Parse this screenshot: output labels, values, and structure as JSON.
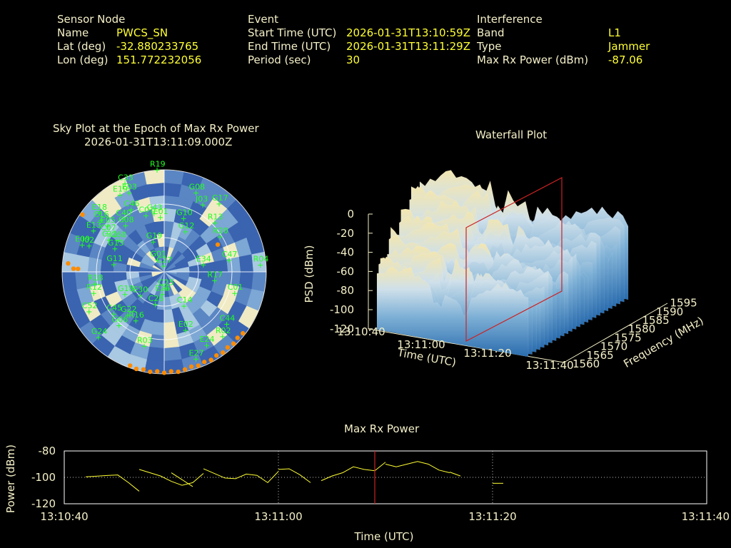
{
  "header": {
    "sensor": {
      "title": "Sensor Node",
      "name_label": "Name",
      "name": "PWCS_SN",
      "lat_label": "Lat (deg)",
      "lat": "-32.880233765",
      "lon_label": "Lon (deg)",
      "lon": "151.772232056"
    },
    "event": {
      "title": "Event",
      "start_label": "Start Time (UTC)",
      "start": "2026-01-31T13:10:59Z",
      "end_label": "End Time (UTC)",
      "end": "2026-01-31T13:11:29Z",
      "period_label": "Period (sec)",
      "period": "30"
    },
    "interference": {
      "title": "Interference",
      "band_label": "Band",
      "band": "L1",
      "type_label": "Type",
      "type": "Jammer",
      "power_label": "Max Rx Power (dBm)",
      "power": "-87.06"
    }
  },
  "sky_plot": {
    "title": "Sky Plot at the Epoch of Max Rx Power",
    "epoch": "2026-01-31T13:11:09.000Z",
    "colors": {
      "cell_dark": "#3a64b0",
      "cell_mid": "#a9c8e2",
      "cell_light": "#f0ebc4",
      "sat_label": "#22ff22",
      "jammer_marker": "#ff8c00"
    },
    "satellites": [
      {
        "id": "C33",
        "az": -24,
        "el": 5
      },
      {
        "id": "R19",
        "az": -4,
        "el": 0
      },
      {
        "id": "E19",
        "az": -30,
        "el": 12
      },
      {
        "id": "E03",
        "az": -24,
        "el": 14
      },
      {
        "id": "G08",
        "az": 22,
        "el": 15
      },
      {
        "id": "E18",
        "az": -48,
        "el": 13
      },
      {
        "id": "J03",
        "az": 30,
        "el": 22
      },
      {
        "id": "C16",
        "az": -51,
        "el": 18
      },
      {
        "id": "E05",
        "az": -51,
        "el": 26
      },
      {
        "id": "C07",
        "az": -56,
        "el": 30
      },
      {
        "id": "C40",
        "az": -38,
        "el": 31
      },
      {
        "id": "E13",
        "az": -60,
        "el": 18
      },
      {
        "id": "C46",
        "az": -28,
        "el": 28
      },
      {
        "id": "C43",
        "az": -10,
        "el": 38
      },
      {
        "id": "C01",
        "az": -18,
        "el": 38
      },
      {
        "id": "G17",
        "az": 39,
        "el": 13
      },
      {
        "id": "C60",
        "az": -56,
        "el": 41
      },
      {
        "id": "C08",
        "az": -40,
        "el": 37
      },
      {
        "id": "E01",
        "az": -4,
        "el": 42
      },
      {
        "id": "G10",
        "az": 20,
        "el": 40
      },
      {
        "id": "R13",
        "az": 46,
        "el": 28
      },
      {
        "id": "I02",
        "az": -71,
        "el": 20
      },
      {
        "id": "C11",
        "az": -60,
        "el": 34
      },
      {
        "id": "G12",
        "az": 28,
        "el": 50
      },
      {
        "id": "R20",
        "az": 58,
        "el": 32
      },
      {
        "id": "G19",
        "az": -20,
        "el": 62
      },
      {
        "id": "E09",
        "az": -72,
        "el": 14
      },
      {
        "id": "G13",
        "az": -65,
        "el": 42
      },
      {
        "id": "C47",
        "az": 80,
        "el": 32
      },
      {
        "id": "G11",
        "az": -82,
        "el": 45
      },
      {
        "id": "C27",
        "az": -5,
        "el": 85
      },
      {
        "id": "G01",
        "az": -30,
        "el": 78
      },
      {
        "id": "E34",
        "az": 80,
        "el": 55
      },
      {
        "id": "R04",
        "az": 86,
        "el": 5
      },
      {
        "id": "R18",
        "az": -100,
        "el": 28
      },
      {
        "id": "R17",
        "az": 100,
        "el": 45
      },
      {
        "id": "E30",
        "az": -135,
        "el": 60
      },
      {
        "id": "R12",
        "az": -107,
        "el": 25
      },
      {
        "id": "G18",
        "az": -120,
        "el": 50
      },
      {
        "id": "E26",
        "az": -175,
        "el": 70
      },
      {
        "id": "C26",
        "az": -165,
        "el": 60
      },
      {
        "id": "G22",
        "az": -140,
        "el": 40
      },
      {
        "id": "C25",
        "az": 175,
        "el": 75
      },
      {
        "id": "C14",
        "az": 150,
        "el": 55
      },
      {
        "id": "C01b",
        "label": "C01",
        "az": 107,
        "el": 25
      },
      {
        "id": "C52",
        "az": -118,
        "el": 15
      },
      {
        "id": "C45",
        "az": -130,
        "el": 32
      },
      {
        "id": "G06",
        "az": -140,
        "el": 28
      },
      {
        "id": "R16",
        "az": -150,
        "el": 40
      },
      {
        "id": "G24",
        "az": -135,
        "el": 8
      },
      {
        "id": "C44",
        "az": 130,
        "el": 18
      },
      {
        "id": "E02",
        "az": 160,
        "el": 35
      },
      {
        "id": "R02",
        "az": 138,
        "el": 13
      },
      {
        "id": "E24",
        "az": 150,
        "el": 15
      },
      {
        "id": "R03",
        "az": -165,
        "el": 22
      },
      {
        "id": "E27",
        "az": 160,
        "el": 8
      }
    ],
    "jammer_track": [
      {
        "az": -55,
        "el": 2
      },
      {
        "az": -85,
        "el": 5
      },
      {
        "az": -88,
        "el": 10
      },
      {
        "az": -88,
        "el": 14
      },
      {
        "az": 63,
        "el": 37
      },
      {
        "az": 128,
        "el": 2
      },
      {
        "az": 132,
        "el": 3
      },
      {
        "az": 136,
        "el": 2
      },
      {
        "az": 140,
        "el": 3
      },
      {
        "az": 144,
        "el": 2
      },
      {
        "az": 148,
        "el": 3
      },
      {
        "az": 152,
        "el": 2
      },
      {
        "az": 156,
        "el": 3
      },
      {
        "az": 160,
        "el": 2
      },
      {
        "az": 164,
        "el": 3
      },
      {
        "az": 168,
        "el": 2
      },
      {
        "az": 172,
        "el": 1
      },
      {
        "az": 176,
        "el": 2
      },
      {
        "az": 180,
        "el": 1
      },
      {
        "az": -176,
        "el": 2
      },
      {
        "az": -172,
        "el": 1
      },
      {
        "az": -168,
        "el": 2
      },
      {
        "az": -164,
        "el": 1
      },
      {
        "az": -160,
        "el": 2
      }
    ]
  },
  "waterfall": {
    "title": "Waterfall Plot",
    "zlabel": "PSD (dBm)",
    "xlabel": "Time (UTC)",
    "ylabel": "Frequency (MHz)",
    "z_ticks": [
      "0",
      "-20",
      "-40",
      "-60",
      "-80",
      "-100",
      "-120"
    ],
    "time_ticks": [
      "13:10:40",
      "13:11:00",
      "13:11:20",
      "13:11:40"
    ],
    "freq_ticks": [
      "1560",
      "1565",
      "1570",
      "1575",
      "1580",
      "1585",
      "1590",
      "1595"
    ],
    "zlim": [
      -120,
      0
    ],
    "marker_time": "13:11:09",
    "colors": {
      "peak": "#f3e6b0",
      "low": "#2a6cae",
      "marker": "#cc2222"
    }
  },
  "chart_data": {
    "type": "line",
    "title": "Max Rx Power",
    "xlabel": "Time (UTC)",
    "ylabel": "Power (dBm)",
    "x_ticks": [
      "13:10:40",
      "13:11:00",
      "13:11:20",
      "13:11:40"
    ],
    "y_ticks": [
      "-80",
      "-100",
      "-120"
    ],
    "ylim": [
      -120,
      -80
    ],
    "xlim_seconds": [
      0,
      60
    ],
    "grid": true,
    "marker_time": "13:11:09",
    "colors": {
      "line": "#ffff33",
      "marker": "#cc2222",
      "grid": "#bbbbbb"
    },
    "series": [
      {
        "segments": [
          {
            "t": [
              2,
              4,
              5,
              6,
              7
            ],
            "v": [
              -99.6,
              -98.6,
              -98.2,
              -104,
              -110.5
            ]
          },
          {
            "t": [
              7,
              9,
              10,
              11,
              12,
              13
            ],
            "v": [
              -94,
              -99,
              -103,
              -106,
              -104,
              -97
            ]
          },
          {
            "t": [
              10,
              12
            ],
            "v": [
              -96.5,
              -107
            ]
          },
          {
            "t": [
              13,
              15,
              16,
              17,
              18,
              19,
              20
            ],
            "v": [
              -93.5,
              -100.5,
              -101,
              -97.5,
              -98.5,
              -104,
              -95.5
            ]
          },
          {
            "t": [
              20,
              21,
              22,
              23
            ],
            "v": [
              -94,
              -93.5,
              -98,
              -104
            ]
          },
          {
            "t": [
              24,
              25,
              26,
              27,
              28,
              29,
              30
            ],
            "v": [
              -102.5,
              -99,
              -96.5,
              -92,
              -94,
              -95,
              -88.5
            ]
          },
          {
            "t": [
              30,
              31,
              32,
              33,
              34,
              35,
              36
            ],
            "v": [
              -90,
              -92,
              -90,
              -88,
              -90,
              -94.5,
              -96.5
            ]
          },
          {
            "t": [
              36,
              37
            ],
            "v": [
              -96,
              -99
            ]
          },
          {
            "t": [
              40,
              41
            ],
            "v": [
              -104.5,
              -104.5
            ]
          }
        ]
      }
    ]
  }
}
